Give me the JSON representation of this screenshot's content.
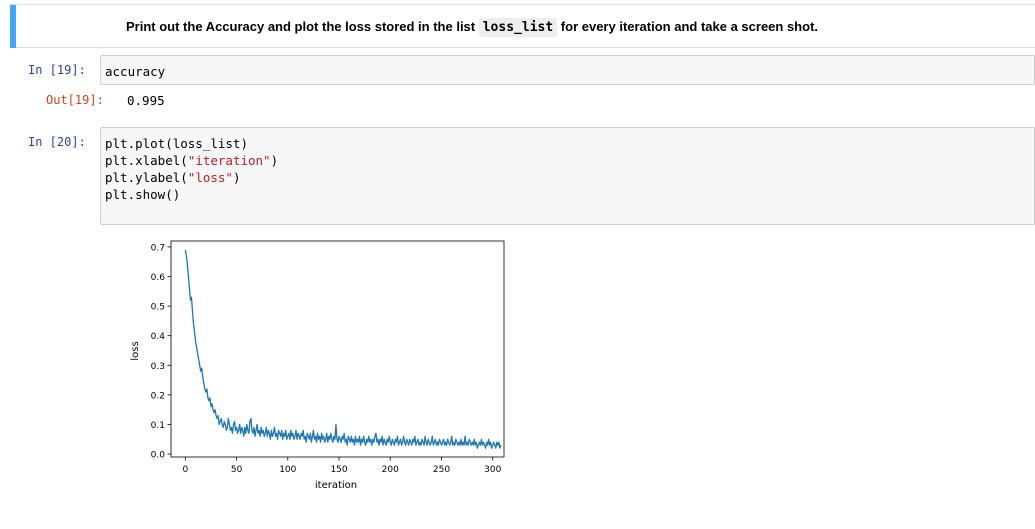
{
  "markdown": {
    "text_before": "Print out the Accuracy and plot the loss stored in the list ",
    "code": "loss_list",
    "text_after": " for every iteration and take a screen shot."
  },
  "cell19": {
    "in_prompt": "In [19]:",
    "code": "accuracy",
    "out_prompt": "Out[19]:",
    "output": "0.995"
  },
  "cell20": {
    "in_prompt": "In [20]:",
    "line1": "plt.plot(loss_list)",
    "line2_pre": "plt.xlabel(",
    "line2_str": "\"iteration\"",
    "line2_post": ")",
    "line3_pre": "plt.ylabel(",
    "line3_str": "\"loss\"",
    "line3_post": ")",
    "line4": "plt.show()"
  },
  "chart_data": {
    "type": "line",
    "xlabel": "iteration",
    "ylabel": "loss",
    "xlim": [
      -14,
      311
    ],
    "ylim": [
      -0.01,
      0.72
    ],
    "xticks": [
      "0",
      "50",
      "100",
      "150",
      "200",
      "250",
      "300"
    ],
    "yticks": [
      "0.0",
      "0.1",
      "0.2",
      "0.3",
      "0.4",
      "0.5",
      "0.6",
      "0.7"
    ],
    "line_color": "#1f77b4",
    "series": [
      {
        "x_start": 0,
        "x_step": 1,
        "values": [
          0.69,
          0.67,
          0.64,
          0.6,
          0.56,
          0.52,
          0.53,
          0.48,
          0.44,
          0.41,
          0.38,
          0.36,
          0.34,
          0.32,
          0.3,
          0.28,
          0.29,
          0.26,
          0.24,
          0.22,
          0.21,
          0.22,
          0.19,
          0.18,
          0.19,
          0.16,
          0.17,
          0.15,
          0.14,
          0.15,
          0.13,
          0.12,
          0.13,
          0.1,
          0.11,
          0.12,
          0.1,
          0.09,
          0.11,
          0.1,
          0.08,
          0.09,
          0.12,
          0.1,
          0.08,
          0.09,
          0.07,
          0.1,
          0.11,
          0.08,
          0.09,
          0.07,
          0.08,
          0.1,
          0.07,
          0.09,
          0.08,
          0.06,
          0.09,
          0.07,
          0.1,
          0.08,
          0.07,
          0.11,
          0.12,
          0.08,
          0.07,
          0.09,
          0.06,
          0.08,
          0.1,
          0.07,
          0.08,
          0.06,
          0.09,
          0.07,
          0.08,
          0.06,
          0.07,
          0.09,
          0.06,
          0.08,
          0.07,
          0.05,
          0.08,
          0.06,
          0.07,
          0.09,
          0.06,
          0.07,
          0.05,
          0.08,
          0.07,
          0.06,
          0.08,
          0.05,
          0.07,
          0.06,
          0.08,
          0.05,
          0.06,
          0.07,
          0.05,
          0.08,
          0.06,
          0.07,
          0.05,
          0.06,
          0.08,
          0.05,
          0.07,
          0.06,
          0.05,
          0.07,
          0.06,
          0.08,
          0.05,
          0.06,
          0.04,
          0.07,
          0.06,
          0.05,
          0.07,
          0.04,
          0.06,
          0.08,
          0.05,
          0.06,
          0.04,
          0.07,
          0.05,
          0.06,
          0.04,
          0.07,
          0.05,
          0.06,
          0.04,
          0.05,
          0.07,
          0.04,
          0.06,
          0.05,
          0.07,
          0.05,
          0.04,
          0.06,
          0.05,
          0.1,
          0.05,
          0.04,
          0.06,
          0.05,
          0.04,
          0.06,
          0.05,
          0.07,
          0.04,
          0.05,
          0.03,
          0.06,
          0.05,
          0.04,
          0.06,
          0.04,
          0.05,
          0.03,
          0.06,
          0.04,
          0.05,
          0.04,
          0.06,
          0.03,
          0.05,
          0.04,
          0.06,
          0.04,
          0.03,
          0.05,
          0.04,
          0.06,
          0.04,
          0.05,
          0.03,
          0.05,
          0.04,
          0.06,
          0.07,
          0.04,
          0.05,
          0.03,
          0.05,
          0.04,
          0.06,
          0.03,
          0.05,
          0.04,
          0.03,
          0.05,
          0.04,
          0.06,
          0.04,
          0.03,
          0.05,
          0.04,
          0.03,
          0.05,
          0.04,
          0.06,
          0.03,
          0.04,
          0.05,
          0.03,
          0.04,
          0.06,
          0.04,
          0.03,
          0.05,
          0.04,
          0.03,
          0.05,
          0.04,
          0.03,
          0.05,
          0.04,
          0.06,
          0.03,
          0.04,
          0.05,
          0.03,
          0.04,
          0.03,
          0.05,
          0.04,
          0.03,
          0.06,
          0.04,
          0.03,
          0.05,
          0.04,
          0.03,
          0.04,
          0.06,
          0.03,
          0.04,
          0.05,
          0.03,
          0.04,
          0.03,
          0.05,
          0.04,
          0.03,
          0.04,
          0.05,
          0.03,
          0.04,
          0.03,
          0.05,
          0.04,
          0.03,
          0.04,
          0.06,
          0.03,
          0.04,
          0.03,
          0.05,
          0.04,
          0.03,
          0.04,
          0.03,
          0.05,
          0.03,
          0.04,
          0.03,
          0.06,
          0.03,
          0.04,
          0.03,
          0.05,
          0.04,
          0.03,
          0.04,
          0.03,
          0.05,
          0.03,
          0.04,
          0.02,
          0.03,
          0.04,
          0.03,
          0.05,
          0.03,
          0.04,
          0.03,
          0.02,
          0.04,
          0.03,
          0.05,
          0.03,
          0.04,
          0.02,
          0.03,
          0.04,
          0.03,
          0.02,
          0.04,
          0.03,
          0.04,
          0.02,
          0.03
        ]
      }
    ]
  }
}
